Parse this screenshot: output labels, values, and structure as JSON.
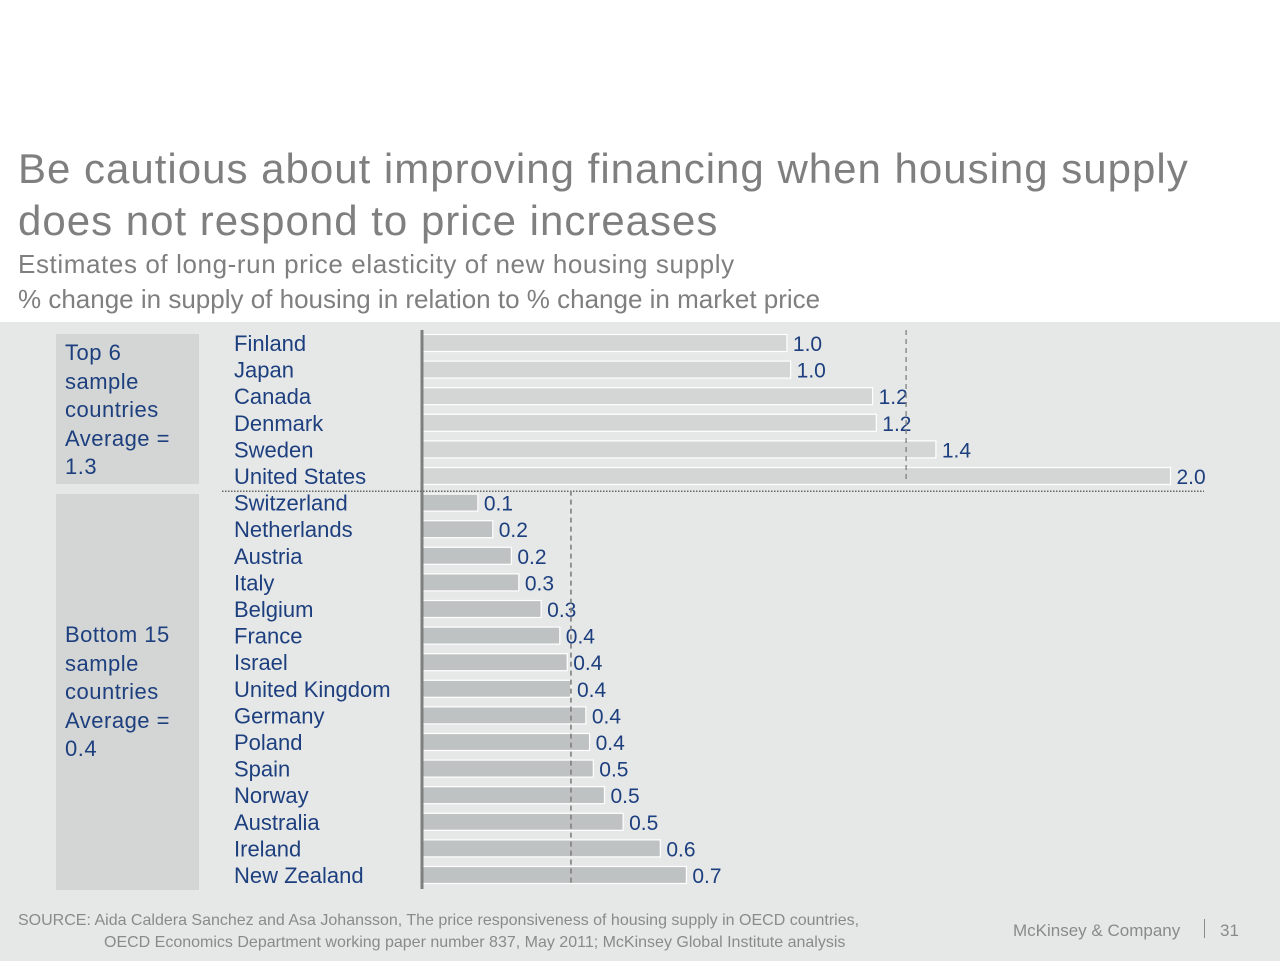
{
  "slide": {
    "title": "Be cautious about improving financing when housing supply does not respond to price increases",
    "subtitle": "Estimates of long-run price elasticity of new housing supply",
    "unit": "% change in supply of housing in relation to % change in market price"
  },
  "groups": {
    "top": {
      "label": "Top 6\nsample\ncountries\nAverage =\n1.3"
    },
    "bottom": {
      "label": "Bottom 15\nsample\ncountries\nAverage =\n0.4"
    }
  },
  "chart_data": {
    "type": "bar",
    "orientation": "horizontal",
    "categories": [
      "Finland",
      "Japan",
      "Canada",
      "Denmark",
      "Sweden",
      "United States",
      "Switzerland",
      "Netherlands",
      "Austria",
      "Italy",
      "Belgium",
      "France",
      "Israel",
      "United Kingdom",
      "Germany",
      "Poland",
      "Spain",
      "Norway",
      "Australia",
      "Ireland",
      "New Zealand"
    ],
    "values": [
      0.98,
      0.99,
      1.21,
      1.22,
      1.38,
      2.01,
      0.15,
      0.19,
      0.24,
      0.26,
      0.32,
      0.37,
      0.39,
      0.4,
      0.44,
      0.45,
      0.46,
      0.49,
      0.54,
      0.64,
      0.71
    ],
    "value_labels": [
      "1.0",
      "1.0",
      "1.2",
      "1.2",
      "1.4",
      "2.0",
      "0.1",
      "0.2",
      "0.2",
      "0.3",
      "0.3",
      "0.4",
      "0.4",
      "0.4",
      "0.4",
      "0.4",
      "0.5",
      "0.5",
      "0.5",
      "0.6",
      "0.7"
    ],
    "group_sizes": [
      6,
      15
    ],
    "group_averages": [
      1.3,
      0.4
    ],
    "xlim": [
      0,
      2.1
    ],
    "bar_color": "#d4d6d6",
    "bottom_bar_color": "#bec2c2",
    "label_color": "#1d3f7e",
    "grid": false
  },
  "footer": {
    "source_line1": "SOURCE: Aida Caldera Sanchez and Asa Johansson, The price responsiveness of housing supply in OECD countries,",
    "source_line2": "OECD Economics Department working paper number 837, May 2011; McKinsey Global Institute analysis",
    "brand": "McKinsey & Company",
    "page": "31"
  }
}
